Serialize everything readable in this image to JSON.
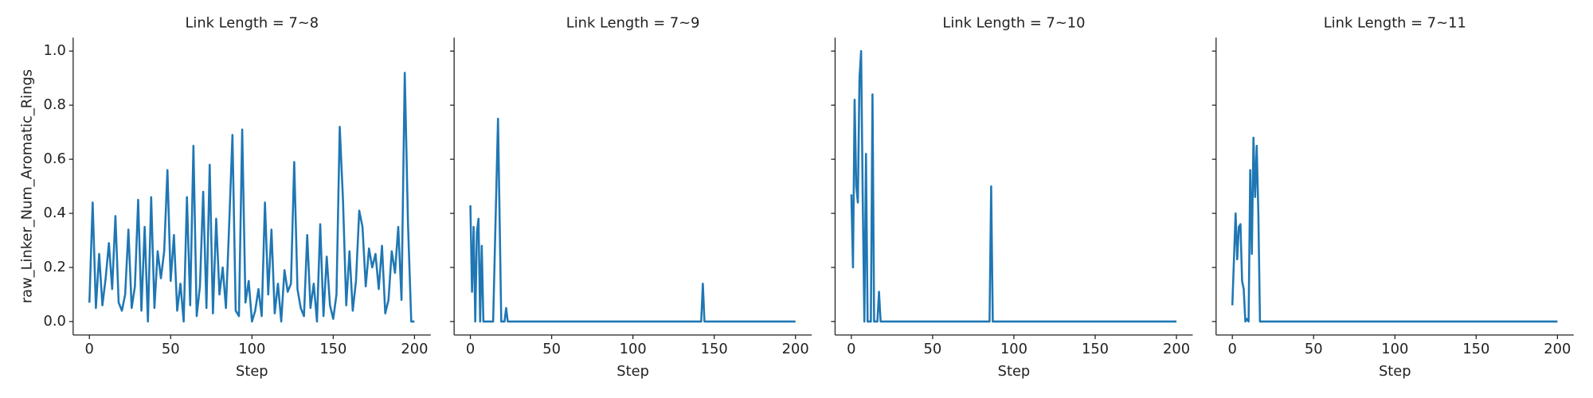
{
  "chart_data": [
    {
      "type": "line",
      "title": "Link Length = 7~8",
      "xlabel": "Step",
      "ylabel": "raw_Linker_Num_Aromatic_Rings",
      "color": "#1f77b4",
      "x": [
        0,
        2,
        4,
        6,
        8,
        10,
        12,
        14,
        16,
        18,
        20,
        22,
        24,
        26,
        28,
        30,
        32,
        34,
        36,
        38,
        40,
        42,
        44,
        46,
        48,
        50,
        52,
        54,
        56,
        58,
        60,
        62,
        64,
        66,
        68,
        70,
        72,
        74,
        76,
        78,
        80,
        82,
        84,
        86,
        88,
        90,
        92,
        94,
        96,
        98,
        100,
        102,
        104,
        106,
        108,
        110,
        112,
        114,
        116,
        118,
        120,
        122,
        124,
        126,
        128,
        130,
        132,
        134,
        136,
        138,
        140,
        142,
        144,
        146,
        148,
        150,
        152,
        154,
        156,
        158,
        160,
        162,
        164,
        166,
        168,
        170,
        172,
        174,
        176,
        178,
        180,
        182,
        184,
        186,
        188,
        190,
        192,
        194,
        196,
        198,
        200
      ],
      "values": [
        0.07,
        0.44,
        0.05,
        0.25,
        0.06,
        0.16,
        0.29,
        0.12,
        0.39,
        0.07,
        0.04,
        0.1,
        0.34,
        0.05,
        0.13,
        0.45,
        0.04,
        0.35,
        0.0,
        0.46,
        0.05,
        0.26,
        0.16,
        0.26,
        0.56,
        0.15,
        0.32,
        0.04,
        0.14,
        0.0,
        0.46,
        0.06,
        0.65,
        0.02,
        0.13,
        0.48,
        0.05,
        0.58,
        0.03,
        0.38,
        0.1,
        0.2,
        0.05,
        0.36,
        0.69,
        0.04,
        0.02,
        0.71,
        0.07,
        0.15,
        0.0,
        0.04,
        0.12,
        0.02,
        0.44,
        0.1,
        0.34,
        0.03,
        0.14,
        0.0,
        0.19,
        0.11,
        0.14,
        0.59,
        0.12,
        0.05,
        0.02,
        0.32,
        0.05,
        0.14,
        0.0,
        0.36,
        0.02,
        0.24,
        0.06,
        0.01,
        0.1,
        0.72,
        0.45,
        0.06,
        0.26,
        0.04,
        0.15,
        0.41,
        0.35,
        0.13,
        0.27,
        0.2,
        0.25,
        0.12,
        0.28,
        0.03,
        0.08,
        0.26,
        0.18,
        0.35,
        0.08,
        0.92,
        0.36,
        0.0,
        0.0
      ],
      "xlim": [
        -10,
        210
      ],
      "ylim": [
        -0.05,
        1.05
      ],
      "xticks": [
        0,
        50,
        100,
        150,
        200
      ],
      "yticks": [
        {
          "value": 0,
          "label": "0.0"
        },
        0.2,
        0.4,
        0.6,
        0.8,
        {
          "value": 1,
          "label": "1.0"
        }
      ]
    },
    {
      "type": "line",
      "title": "Link Length = 7~9",
      "xlabel": "Step",
      "color": "#1f77b4",
      "x": [
        0,
        1,
        2,
        3,
        4,
        5,
        6,
        7,
        8,
        14,
        17,
        19,
        21,
        22,
        23,
        142,
        143,
        144,
        200
      ],
      "values": [
        0.43,
        0.11,
        0.35,
        0.0,
        0.33,
        0.38,
        0.0,
        0.28,
        0.0,
        0.0,
        0.75,
        0.0,
        0.0,
        0.05,
        0.0,
        0.0,
        0.14,
        0.0,
        0.0
      ],
      "xlim": [
        -10,
        210
      ],
      "ylim": [
        -0.05,
        1.05
      ],
      "xticks": [
        0,
        50,
        100,
        150,
        200
      ],
      "yticks": [
        0,
        0.2,
        0.4,
        0.6,
        0.8,
        1
      ]
    },
    {
      "type": "line",
      "title": "Link Length = 7~10",
      "xlabel": "Step",
      "color": "#1f77b4",
      "x": [
        0,
        1,
        2,
        3,
        4,
        5,
        6,
        7,
        8,
        9,
        10,
        12,
        13,
        14,
        16,
        17,
        18,
        85,
        86,
        87,
        200
      ],
      "values": [
        0.47,
        0.2,
        0.82,
        0.5,
        0.44,
        0.9,
        1.0,
        0.45,
        0.0,
        0.62,
        0.0,
        0.0,
        0.84,
        0.0,
        0.0,
        0.11,
        0.0,
        0.0,
        0.5,
        0.0,
        0.0
      ],
      "xlim": [
        -10,
        210
      ],
      "ylim": [
        -0.05,
        1.05
      ],
      "xticks": [
        0,
        50,
        100,
        150,
        200
      ],
      "yticks": [
        0,
        0.2,
        0.4,
        0.6,
        0.8,
        1
      ]
    },
    {
      "type": "line",
      "title": "Link Length = 7~11",
      "xlabel": "Step",
      "color": "#1f77b4",
      "x": [
        0,
        1,
        2,
        3,
        4,
        5,
        6,
        7,
        8,
        9,
        10,
        11,
        12,
        13,
        14,
        15,
        16,
        17,
        200
      ],
      "values": [
        0.06,
        0.23,
        0.4,
        0.23,
        0.35,
        0.36,
        0.15,
        0.12,
        0.0,
        0.01,
        0.0,
        0.56,
        0.25,
        0.68,
        0.46,
        0.65,
        0.4,
        0.0,
        0.0
      ],
      "xlim": [
        -10,
        210
      ],
      "ylim": [
        -0.05,
        1.05
      ],
      "xticks": [
        0,
        50,
        100,
        150,
        200
      ],
      "yticks": [
        0,
        0.2,
        0.4,
        0.6,
        0.8,
        1
      ]
    }
  ]
}
